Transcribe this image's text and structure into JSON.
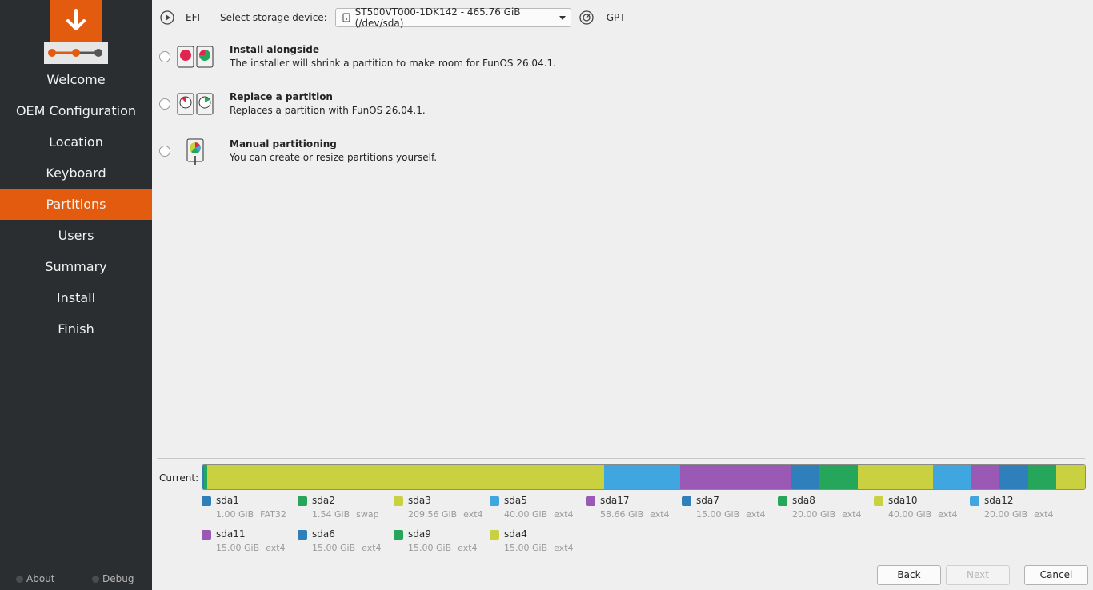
{
  "sidebar": {
    "steps": [
      "Welcome",
      "OEM Configuration",
      "Location",
      "Keyboard",
      "Partitions",
      "Users",
      "Summary",
      "Install",
      "Finish"
    ],
    "active_step": "Partitions",
    "about_label": "About",
    "debug_label": "Debug"
  },
  "top": {
    "firmware": "EFI",
    "storage_label": "Select storage device:",
    "device": "ST500VT000-1DK142 - 465.76 GiB (/dev/sda)",
    "table_type": "GPT"
  },
  "options": [
    {
      "title": "Install alongside",
      "desc": "The installer will shrink a partition to make room for FunOS 26.04.1.",
      "icon": "install-alongside-icon"
    },
    {
      "title": "Replace a partition",
      "desc": "Replaces a partition with FunOS 26.04.1.",
      "icon": "replace-partition-icon"
    },
    {
      "title": "Manual partitioning",
      "desc": "You can create or resize partitions yourself.",
      "icon": "manual-partitioning-icon"
    }
  ],
  "current_label": "Current:",
  "partitions": [
    {
      "name": "sda1",
      "size": "1.00 GiB",
      "fs": "FAT32",
      "color": "#2f7fba",
      "gib": 1.0
    },
    {
      "name": "sda2",
      "size": "1.54 GiB",
      "fs": "swap",
      "color": "#26a65b",
      "gib": 1.54
    },
    {
      "name": "sda3",
      "size": "209.56 GiB",
      "fs": "ext4",
      "color": "#c9d141",
      "gib": 209.56
    },
    {
      "name": "sda5",
      "size": "40.00 GiB",
      "fs": "ext4",
      "color": "#3fa6e0",
      "gib": 40.0
    },
    {
      "name": "sda17",
      "size": "58.66 GiB",
      "fs": "ext4",
      "color": "#9b59b6",
      "gib": 58.66
    },
    {
      "name": "sda7",
      "size": "15.00 GiB",
      "fs": "ext4",
      "color": "#2f7fba",
      "gib": 15.0
    },
    {
      "name": "sda8",
      "size": "20.00 GiB",
      "fs": "ext4",
      "color": "#26a65b",
      "gib": 20.0
    },
    {
      "name": "sda10",
      "size": "40.00 GiB",
      "fs": "ext4",
      "color": "#c9d141",
      "gib": 40.0
    },
    {
      "name": "sda12",
      "size": "20.00 GiB",
      "fs": "ext4",
      "color": "#3fa6e0",
      "gib": 20.0
    },
    {
      "name": "sda11",
      "size": "15.00 GiB",
      "fs": "ext4",
      "color": "#9b59b6",
      "gib": 15.0
    },
    {
      "name": "sda6",
      "size": "15.00 GiB",
      "fs": "ext4",
      "color": "#2f7fba",
      "gib": 15.0
    },
    {
      "name": "sda9",
      "size": "15.00 GiB",
      "fs": "ext4",
      "color": "#26a65b",
      "gib": 15.0
    },
    {
      "name": "sda4",
      "size": "15.00 GiB",
      "fs": "ext4",
      "color": "#c9d141",
      "gib": 15.0
    }
  ],
  "buttons": {
    "back": "Back",
    "next": "Next",
    "cancel": "Cancel"
  },
  "colors": {
    "accent": "#e35b0e",
    "sidebar_bg": "#2b2e30"
  }
}
